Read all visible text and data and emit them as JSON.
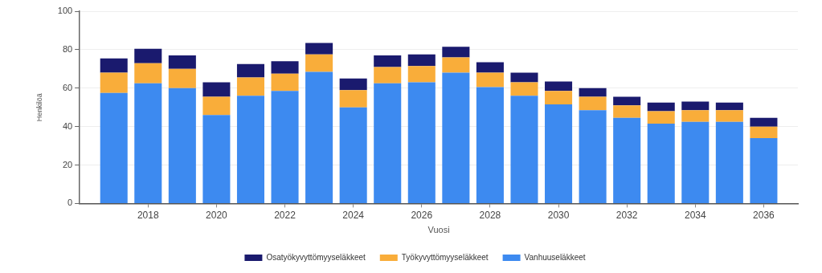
{
  "chart_data": {
    "type": "bar",
    "stacked": true,
    "xlabel": "Vuosi",
    "ylabel": "Henkilöä",
    "x": [
      2017,
      2018,
      2019,
      2020,
      2021,
      2022,
      2023,
      2024,
      2025,
      2026,
      2027,
      2028,
      2029,
      2030,
      2031,
      2032,
      2033,
      2034,
      2035,
      2036
    ],
    "xlim": [
      2016,
      2037
    ],
    "xticks": [
      2018,
      2020,
      2022,
      2024,
      2026,
      2028,
      2030,
      2032,
      2034,
      2036
    ],
    "ylim": [
      0,
      100
    ],
    "yticks": [
      0,
      20,
      40,
      60,
      80,
      100
    ],
    "grid": "y",
    "legend": "bottom",
    "series": [
      {
        "name": "Vanhuuseläkkeet",
        "color": "#3d8af0",
        "values": [
          57.5,
          62.5,
          60,
          46,
          56,
          58.5,
          68.5,
          50,
          62.5,
          63,
          68,
          60.5,
          56,
          51.5,
          48.5,
          44.5,
          41.5,
          42.5,
          42.5,
          34
        ]
      },
      {
        "name": "Työkyvyttömyyseläkkeet",
        "color": "#f9ad3a",
        "values": [
          10.5,
          10.5,
          10,
          9.5,
          9.5,
          9,
          9,
          9,
          8.5,
          8.5,
          8,
          7.5,
          7,
          7,
          7,
          6.5,
          6.5,
          6,
          6,
          6
        ]
      },
      {
        "name": "Osatyökyvyttömyyseläkkeet",
        "color": "#1a1a6e",
        "values": [
          7.5,
          7.5,
          7,
          7.5,
          7,
          6.5,
          6,
          6,
          6,
          6,
          5.5,
          5.5,
          5,
          5,
          4.5,
          4.5,
          4.5,
          4.5,
          4,
          4.5
        ]
      }
    ]
  }
}
